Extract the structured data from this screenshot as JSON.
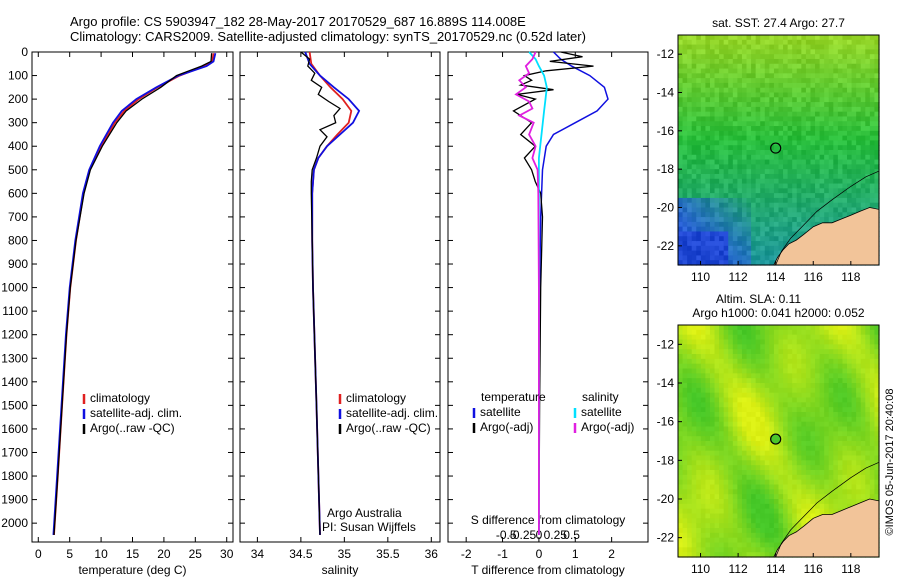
{
  "header": {
    "line1": "Argo profile: CS 5903947_182 28-May-2017 20170529_687 16.889S 114.008E",
    "line2": "Climatology: CARS2009. Satellite-adjusted climatology: synTS_20170529.nc (0.52d later)"
  },
  "colors": {
    "climatology": "#e02020",
    "satellite": "#1010e0",
    "argo": "#000000",
    "salinity_sat": "#00e0ff",
    "salinity_argo": "#e020e0",
    "land": "#f2c499"
  },
  "chart_data": [
    {
      "type": "line",
      "name": "temperature-profile",
      "xlabel": "temperature (deg C)",
      "ylabel": "",
      "xlim": [
        -1,
        31
      ],
      "ylim": [
        2080,
        0
      ],
      "xticks": [
        0,
        5,
        10,
        15,
        20,
        25,
        30
      ],
      "xtick_labels": [
        "0",
        "5",
        "10",
        "15",
        "20",
        "25",
        "30"
      ],
      "yticks": [
        0,
        100,
        200,
        300,
        400,
        500,
        600,
        700,
        800,
        900,
        1000,
        1100,
        1200,
        1300,
        1400,
        1500,
        1600,
        1700,
        1800,
        1900,
        2000
      ],
      "ytick_labels": [
        "0",
        "100",
        "200",
        "300",
        "400",
        "500",
        "600",
        "700",
        "800",
        "900",
        "1000",
        "1100",
        "1200",
        "1300",
        "1400",
        "1500",
        "1600",
        "1700",
        "1800",
        "1900",
        "2000"
      ],
      "legend": [
        "climatology",
        "satellite-adj. clim.",
        "Argo(..raw -QC)"
      ],
      "series": [
        {
          "name": "climatology",
          "depth": [
            5,
            40,
            60,
            80,
            100,
            150,
            200,
            250,
            300,
            400,
            500,
            600,
            800,
            1000,
            1200,
            1500,
            1800,
            2050
          ],
          "values": [
            27.9,
            27.7,
            26.5,
            24.5,
            22.5,
            19.0,
            16.0,
            13.7,
            12.2,
            10.0,
            8.2,
            7.2,
            6.0,
            5.1,
            4.5,
            3.8,
            3.1,
            2.5
          ]
        },
        {
          "name": "satellite",
          "depth": [
            5,
            40,
            60,
            80,
            100,
            150,
            200,
            250,
            300,
            400,
            500,
            600,
            800,
            1000,
            1200,
            1500,
            1800,
            2050
          ],
          "values": [
            28.2,
            27.9,
            26.8,
            24.6,
            22.3,
            18.8,
            15.6,
            13.3,
            11.9,
            9.8,
            8.1,
            7.1,
            5.9,
            5.0,
            4.4,
            3.7,
            3.0,
            2.4
          ]
        },
        {
          "name": "argo",
          "depth": [
            5,
            40,
            60,
            80,
            100,
            150,
            200,
            250,
            300,
            400,
            500,
            600,
            800,
            1000,
            1200,
            1500,
            1800,
            2050
          ],
          "values": [
            27.6,
            27.5,
            26.0,
            24.0,
            22.0,
            19.5,
            16.5,
            14.0,
            12.5,
            10.2,
            8.3,
            7.3,
            6.0,
            5.1,
            4.5,
            3.8,
            3.1,
            2.5
          ]
        }
      ]
    },
    {
      "type": "line",
      "name": "salinity-profile",
      "xlabel": "salinity",
      "ylabel": "",
      "xlim": [
        33.8,
        36.1
      ],
      "ylim": [
        2080,
        0
      ],
      "xticks": [
        34,
        34.5,
        35,
        35.5,
        36
      ],
      "xtick_labels": [
        "34",
        "34.5",
        "35",
        "35.5",
        "36"
      ],
      "legend": [
        "climatology",
        "satellite-adj. clim.",
        "Argo(..raw -QC)"
      ],
      "annotation": [
        "Argo Australia",
        "PI: Susan Wijffels"
      ],
      "series": [
        {
          "name": "climatology",
          "depth": [
            0,
            50,
            100,
            150,
            200,
            250,
            300,
            350,
            400,
            450,
            500,
            600,
            800,
            1000,
            1500,
            2050
          ],
          "values": [
            34.6,
            34.62,
            34.72,
            34.84,
            34.98,
            35.08,
            35.05,
            34.92,
            34.8,
            34.7,
            34.65,
            34.63,
            34.63,
            34.64,
            34.68,
            34.72
          ]
        },
        {
          "name": "satellite",
          "depth": [
            0,
            50,
            100,
            150,
            200,
            250,
            300,
            350,
            400,
            450,
            500,
            600,
            800,
            1000,
            1500,
            2050
          ],
          "values": [
            34.55,
            34.6,
            34.72,
            34.88,
            35.05,
            35.17,
            35.1,
            34.95,
            34.8,
            34.7,
            34.65,
            34.63,
            34.63,
            34.64,
            34.68,
            34.72
          ]
        },
        {
          "name": "argo",
          "depth": [
            0,
            30,
            60,
            90,
            120,
            150,
            180,
            210,
            240,
            270,
            300,
            330,
            360,
            400,
            450,
            500,
            550,
            600,
            800,
            1000,
            1500,
            2050
          ],
          "values": [
            34.5,
            34.6,
            34.58,
            34.66,
            34.62,
            34.74,
            34.7,
            34.82,
            34.95,
            34.88,
            34.9,
            34.72,
            34.8,
            34.72,
            34.68,
            34.63,
            34.62,
            34.62,
            34.63,
            34.64,
            34.68,
            34.72
          ]
        }
      ]
    },
    {
      "type": "line",
      "name": "difference-profile",
      "xlabel": "T difference from climatology",
      "xlabel_top": "S difference from climatology",
      "xlim": [
        -2.5,
        3
      ],
      "ylim": [
        2080,
        0
      ],
      "xticks": [
        -2,
        -1,
        0,
        1,
        2
      ],
      "xtick_labels": [
        "-2",
        "-1",
        "0",
        "1",
        "2"
      ],
      "s_ticks": [
        -0.5,
        -0.25,
        0,
        0.25,
        0.5
      ],
      "s_tick_labels": [
        "-0.5",
        "-0.25",
        "0",
        "0.25",
        "0.5"
      ],
      "legend_temperature": [
        "temperature",
        "satellite",
        "Argo(-adj)"
      ],
      "legend_salinity": [
        "salinity",
        "satellite",
        "Argo(-adj)"
      ],
      "series": [
        {
          "name": "T satellite",
          "depth": [
            0,
            30,
            60,
            100,
            150,
            200,
            250,
            300,
            350,
            400,
            500,
            700,
            1000,
            1500,
            2050
          ],
          "values": [
            0.4,
            0.6,
            0.9,
            1.4,
            1.8,
            1.9,
            1.6,
            1.0,
            0.4,
            0.2,
            0.1,
            0.05,
            0.02,
            0.0,
            0.0
          ]
        },
        {
          "name": "T argo",
          "depth": [
            0,
            20,
            40,
            60,
            80,
            100,
            120,
            140,
            160,
            180,
            200,
            250,
            300,
            350,
            400,
            450,
            500,
            550,
            600,
            700,
            1000,
            1500,
            2050
          ],
          "values": [
            0.6,
            1.2,
            0.3,
            1.5,
            0.2,
            -0.4,
            -0.2,
            -0.5,
            0.4,
            -0.6,
            -0.1,
            -0.7,
            -0.2,
            -0.5,
            -0.1,
            -0.4,
            -0.2,
            -0.1,
            0.05,
            0.1,
            0.05,
            0.02,
            0.0
          ]
        },
        {
          "name": "S satellite",
          "depth": [
            0,
            30,
            60,
            100,
            150,
            200,
            250,
            300,
            350,
            400,
            450,
            500,
            600,
            800,
            1000,
            1500,
            2050
          ],
          "values": [
            -0.15,
            -0.05,
            0.0,
            0.08,
            0.12,
            0.1,
            0.08,
            0.06,
            0.04,
            0.02,
            0.0,
            0.0,
            0.0,
            0.0,
            0.0,
            0.0,
            0.0
          ]
        },
        {
          "name": "S argo",
          "depth": [
            0,
            30,
            60,
            90,
            120,
            150,
            180,
            210,
            240,
            270,
            300,
            350,
            400,
            450,
            500,
            600,
            1000,
            2050
          ],
          "values": [
            -0.05,
            -0.1,
            -0.2,
            -0.15,
            -0.3,
            -0.2,
            -0.35,
            -0.15,
            -0.1,
            -0.3,
            -0.08,
            -0.15,
            -0.05,
            -0.1,
            -0.02,
            -0.01,
            0.0,
            0.0
          ]
        }
      ]
    },
    {
      "type": "heatmap",
      "name": "sst-map",
      "title": "sat. SST: 27.4 Argo: 27.7",
      "xlim": [
        108.8,
        119.5
      ],
      "ylim": [
        -23,
        -11
      ],
      "xticks": [
        110,
        112,
        114,
        116,
        118
      ],
      "xtick_labels": [
        "110",
        "112",
        "114",
        "116",
        "118"
      ],
      "yticks": [
        -12,
        -14,
        -16,
        -18,
        -20,
        -22
      ],
      "ytick_labels": [
        "-12",
        "-14",
        "-16",
        "-18",
        "-20",
        "-22"
      ],
      "marker": {
        "lon": 114.0,
        "lat": -16.9
      }
    },
    {
      "type": "heatmap",
      "name": "sla-map",
      "title": "Altim. SLA: 0.11",
      "subtitle": "Argo h1000: 0.041 h2000: 0.052",
      "xlim": [
        108.8,
        119.5
      ],
      "ylim": [
        -23,
        -11
      ],
      "xticks": [
        110,
        112,
        114,
        116,
        118
      ],
      "xtick_labels": [
        "110",
        "112",
        "114",
        "116",
        "118"
      ],
      "yticks": [
        -12,
        -14,
        -16,
        -18,
        -20,
        -22
      ],
      "ytick_labels": [
        "-12",
        "-14",
        "-16",
        "-18",
        "-20",
        "-22"
      ],
      "marker": {
        "lon": 114.0,
        "lat": -16.9
      }
    }
  ],
  "footer": {
    "credit": "©IMOS 05-Jun-2017 20:40:08"
  }
}
